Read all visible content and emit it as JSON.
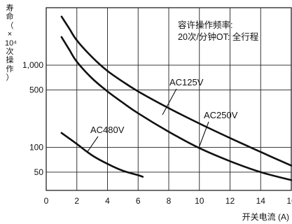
{
  "chart_data": {
    "type": "line",
    "title": "",
    "ylabel_chars": [
      "寿",
      "命",
      "（",
      "×",
      "10⁴",
      "次",
      "操",
      "作",
      "）"
    ],
    "xlabel": "开关电流 (A)",
    "annotation": [
      "容许操作频率:",
      "20次/分钟OT: 全行程"
    ],
    "x_ticks": [
      "0",
      "2",
      "4",
      "6",
      "8",
      "10",
      "12",
      "14",
      "16"
    ],
    "y_ticks": [
      {
        "value": 1000,
        "label": "1,000"
      },
      {
        "value": 500,
        "label": "500"
      },
      {
        "value": 100,
        "label": "100"
      },
      {
        "value": 50,
        "label": "50"
      }
    ],
    "xlim": [
      0,
      16
    ],
    "ylim": [
      30,
      5000
    ],
    "y_scale": "log",
    "grid": true,
    "series": [
      {
        "name": "AC125V",
        "x": [
          1,
          1.5,
          2,
          3,
          4,
          5,
          6,
          8,
          10,
          12,
          14,
          16
        ],
        "y": [
          3900,
          2800,
          2000,
          1250,
          850,
          630,
          480,
          300,
          195,
          130,
          88,
          60
        ]
      },
      {
        "name": "AC250V",
        "x": [
          1,
          1.5,
          2,
          3,
          4,
          5,
          6,
          8,
          10,
          12,
          14,
          16
        ],
        "y": [
          2200,
          1550,
          1100,
          690,
          480,
          350,
          260,
          155,
          98,
          68,
          50,
          40
        ]
      },
      {
        "name": "AC480V",
        "x": [
          1,
          2,
          3,
          4,
          5,
          6,
          6.3
        ],
        "y": [
          150,
          110,
          80,
          63,
          52,
          46,
          44
        ]
      }
    ]
  }
}
